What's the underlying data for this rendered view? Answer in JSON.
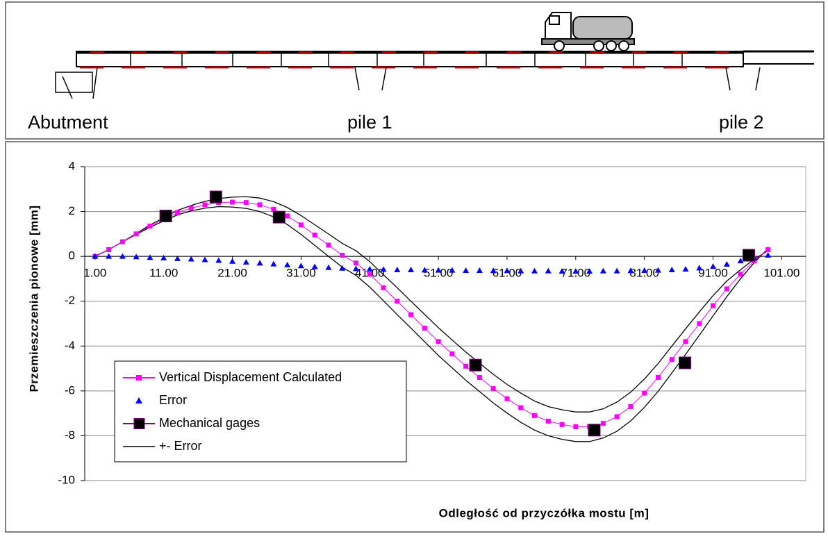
{
  "diagram": {
    "labels": [
      "Abutment",
      "pile 1",
      "pile 2"
    ]
  },
  "chart_data": {
    "type": "line",
    "y_label": "Przemieszczenia pionowe [mm]",
    "x_label": "Odległość od przyczółka mostu [m]",
    "xlim": [
      -0.5,
      104.5
    ],
    "ylim": [
      -10,
      4
    ],
    "xticks": [
      {
        "value": 1,
        "label": "1.00"
      },
      {
        "value": 11,
        "label": "11.00"
      },
      {
        "value": 21,
        "label": "21.00"
      },
      {
        "value": 31,
        "label": "31.00"
      },
      {
        "value": 41,
        "label": "41.00"
      },
      {
        "value": 51,
        "label": "51.00"
      },
      {
        "value": 61,
        "label": "61.00"
      },
      {
        "value": 71,
        "label": "71.00"
      },
      {
        "value": 81,
        "label": "81.00"
      },
      {
        "value": 91,
        "label": "91.00"
      },
      {
        "value": 101,
        "label": "101.00"
      }
    ],
    "yticks": [
      -10,
      -8,
      -6,
      -4,
      -2,
      0,
      2,
      4
    ],
    "grid": true,
    "legend": "lower-left",
    "x": [
      1,
      3,
      5,
      7,
      9,
      11,
      13,
      15,
      17,
      19,
      21,
      23,
      25,
      27,
      29,
      31,
      33,
      35,
      37,
      39,
      41,
      43,
      45,
      47,
      49,
      51,
      53,
      55,
      57,
      59,
      61,
      63,
      65,
      67,
      69,
      71,
      73,
      75,
      77,
      79,
      81,
      83,
      85,
      87,
      89,
      91,
      93,
      95,
      97,
      99
    ],
    "series": [
      {
        "name": "Vertical Displacement Calculated",
        "color": "#ff00ff",
        "marker": "square",
        "values": [
          0,
          0.3,
          0.65,
          1.0,
          1.35,
          1.65,
          1.95,
          2.15,
          2.3,
          2.4,
          2.42,
          2.4,
          2.3,
          2.1,
          1.8,
          1.4,
          0.95,
          0.5,
          0.05,
          -0.3,
          -0.8,
          -1.4,
          -2.0,
          -2.6,
          -3.2,
          -3.8,
          -4.35,
          -4.9,
          -5.4,
          -5.9,
          -6.35,
          -6.75,
          -7.1,
          -7.35,
          -7.5,
          -7.6,
          -7.6,
          -7.45,
          -7.15,
          -6.7,
          -6.1,
          -5.4,
          -4.6,
          -3.8,
          -3.0,
          -2.2,
          -1.45,
          -0.8,
          -0.2,
          0.3
        ]
      },
      {
        "name": "Error",
        "color": "#0000ff",
        "marker": "triangle",
        "values": [
          0,
          0,
          0,
          -0.02,
          -0.05,
          -0.07,
          -0.1,
          -0.12,
          -0.15,
          -0.18,
          -0.22,
          -0.26,
          -0.3,
          -0.34,
          -0.38,
          -0.42,
          -0.46,
          -0.5,
          -0.53,
          -0.55,
          -0.57,
          -0.58,
          -0.6,
          -0.6,
          -0.61,
          -0.62,
          -0.62,
          -0.63,
          -0.63,
          -0.64,
          -0.64,
          -0.65,
          -0.65,
          -0.65,
          -0.66,
          -0.66,
          -0.66,
          -0.65,
          -0.65,
          -0.64,
          -0.63,
          -0.62,
          -0.6,
          -0.57,
          -0.52,
          -0.45,
          -0.35,
          -0.2,
          -0.08,
          0.05
        ]
      },
      {
        "name": "Mechanical gages",
        "color": "#800080",
        "marker": "big-square",
        "x": [
          11.3,
          18.6,
          27.8,
          56.4,
          73.7,
          86.9,
          96.2
        ],
        "values": [
          1.8,
          2.65,
          1.75,
          -4.85,
          -7.75,
          -4.75,
          0.05
        ]
      },
      {
        "name": "+- Error",
        "color": "#000000",
        "marker": "none",
        "values": [
          0,
          0.3,
          0.65,
          1.02,
          1.4,
          1.72,
          2.05,
          2.27,
          2.45,
          2.58,
          2.64,
          2.66,
          2.6,
          2.44,
          2.18,
          1.82,
          1.41,
          1.0,
          0.58,
          0.25,
          -0.23,
          -0.82,
          -1.4,
          -2.0,
          -2.59,
          -3.18,
          -3.73,
          -4.27,
          -4.77,
          -5.26,
          -5.71,
          -6.1,
          -6.45,
          -6.7,
          -6.84,
          -6.94,
          -6.94,
          -6.8,
          -6.5,
          -6.06,
          -5.47,
          -4.78,
          -4.0,
          -3.23,
          -2.48,
          -1.75,
          -1.1,
          -0.6,
          -0.12,
          0.25
        ],
        "lower": [
          0,
          0.3,
          0.65,
          0.98,
          1.3,
          1.58,
          1.85,
          2.03,
          2.15,
          2.22,
          2.2,
          2.14,
          2.0,
          1.76,
          1.42,
          0.98,
          0.49,
          0.0,
          -0.48,
          -0.85,
          -1.37,
          -1.98,
          -2.6,
          -3.2,
          -3.81,
          -4.42,
          -4.97,
          -5.53,
          -6.03,
          -6.54,
          -6.99,
          -7.4,
          -7.75,
          -8.0,
          -8.16,
          -8.26,
          -8.26,
          -8.1,
          -7.8,
          -7.34,
          -6.73,
          -6.02,
          -5.2,
          -4.37,
          -3.52,
          -2.65,
          -1.8,
          -1.0,
          -0.28,
          0.35
        ]
      }
    ]
  }
}
